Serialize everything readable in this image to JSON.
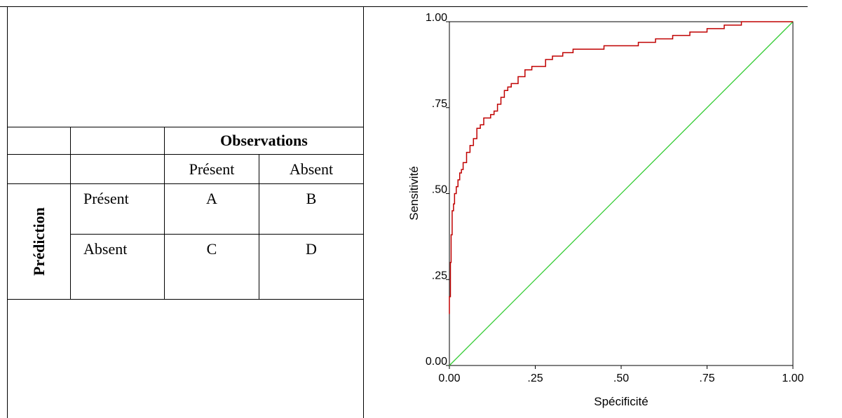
{
  "table": {
    "observations_header": "Observations",
    "col_present": "Présent",
    "col_absent": "Absent",
    "row_group_label": "Prédiction",
    "row_present": "Présent",
    "row_absent": "Absent",
    "cell_a": "A",
    "cell_b": "B",
    "cell_c": "C",
    "cell_d": "D"
  },
  "chart_data": {
    "type": "line",
    "xlabel": "Spécificité",
    "ylabel": "Sensitivité",
    "xlim": [
      0,
      1
    ],
    "ylim": [
      0,
      1
    ],
    "x_ticks": [
      "0.00",
      ".25",
      ".50",
      ".75",
      "1.00"
    ],
    "y_ticks": [
      "0.00",
      ".25",
      ".50",
      ".75",
      "1.00"
    ],
    "colors": {
      "roc": "#c00000",
      "diagonal": "#33cc33"
    },
    "series": [
      {
        "x": [
          0,
          0,
          0.003,
          0.005,
          0.008,
          0.012,
          0.015,
          0.02,
          0.025,
          0.03,
          0.035,
          0.04,
          0.05,
          0.06,
          0.07,
          0.08,
          0.09,
          0.1,
          0.11,
          0.12,
          0.13,
          0.14,
          0.15,
          0.16,
          0.17,
          0.18,
          0.2,
          0.22,
          0.24,
          0.26,
          0.28,
          0.3,
          0.33,
          0.36,
          0.4,
          0.45,
          0.5,
          0.55,
          0.6,
          0.65,
          0.7,
          0.75,
          0.8,
          0.85,
          0.88,
          0.9,
          1
        ],
        "y": [
          0.15,
          0.2,
          0.3,
          0.38,
          0.45,
          0.47,
          0.5,
          0.52,
          0.54,
          0.56,
          0.57,
          0.59,
          0.62,
          0.64,
          0.66,
          0.69,
          0.7,
          0.72,
          0.72,
          0.73,
          0.74,
          0.76,
          0.78,
          0.8,
          0.81,
          0.82,
          0.84,
          0.86,
          0.87,
          0.87,
          0.89,
          0.9,
          0.91,
          0.92,
          0.92,
          0.93,
          0.93,
          0.94,
          0.95,
          0.96,
          0.97,
          0.98,
          0.99,
          1.0,
          1.0,
          1.0,
          1.0
        ]
      },
      {
        "x": [
          0,
          1
        ],
        "y": [
          0,
          1
        ]
      }
    ]
  }
}
